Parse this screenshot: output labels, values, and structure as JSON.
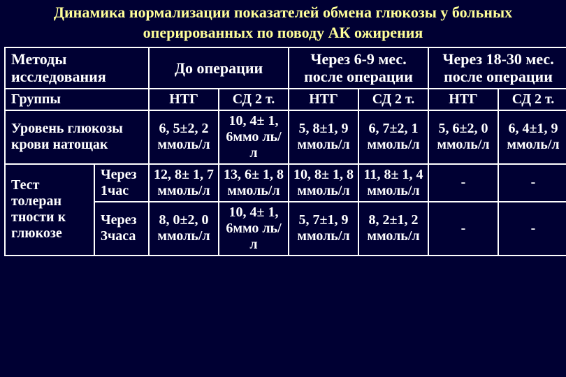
{
  "title": "Динамика нормализации показателей обмена глюкозы у больных оперированных по поводу АК ожирения",
  "header": {
    "methods": "Методы исследования",
    "pre": "До операции",
    "post69": "Через 6-9 мес. после операции",
    "post1830": "Через 18-30 мес. после операции"
  },
  "sub": {
    "ntg": "НТГ",
    "sd2t": "СД 2 т."
  },
  "rows": {
    "groups": "Группы",
    "fasting": "Уровень глюкозы крови натощак",
    "tolerance": "Тест толеран тности к глюкозе",
    "after1h": "Через 1час",
    "after3h": "Через 3часа"
  },
  "vals": {
    "fasting": {
      "pre_ntg": "6, 5±2, 2 ммоль/л",
      "pre_sd": "10, 4± 1, 6ммо ль/л",
      "p69_ntg": "5, 8±1, 9 ммоль/л",
      "p69_sd": "6, 7±2, 1 ммоль/л",
      "p1830_ntg": "5, 6±2, 0 ммоль/л",
      "p1830_sd": "6, 4±1, 9 ммоль/л"
    },
    "t1h": {
      "pre_ntg": "12, 8± 1, 7 ммоль/л",
      "pre_sd": "13, 6± 1, 8 ммоль/л",
      "p69_ntg": "10, 8± 1, 8 ммоль/л",
      "p69_sd": "11, 8± 1, 4 ммоль/л",
      "p1830_ntg": "-",
      "p1830_sd": "-"
    },
    "t3h": {
      "pre_ntg": "8, 0±2, 0 ммоль/л",
      "pre_sd": "10, 4± 1, 6ммо ль/л",
      "p69_ntg": "5, 7±1, 9 ммоль/л",
      "p69_sd": "8, 2±1, 2 ммоль/л",
      "p1830_ntg": "-",
      "p1830_sd": "-"
    }
  },
  "colors": {
    "background": "#000033",
    "title": "#ffff99",
    "text": "#ffffff",
    "border": "#ffffff"
  }
}
